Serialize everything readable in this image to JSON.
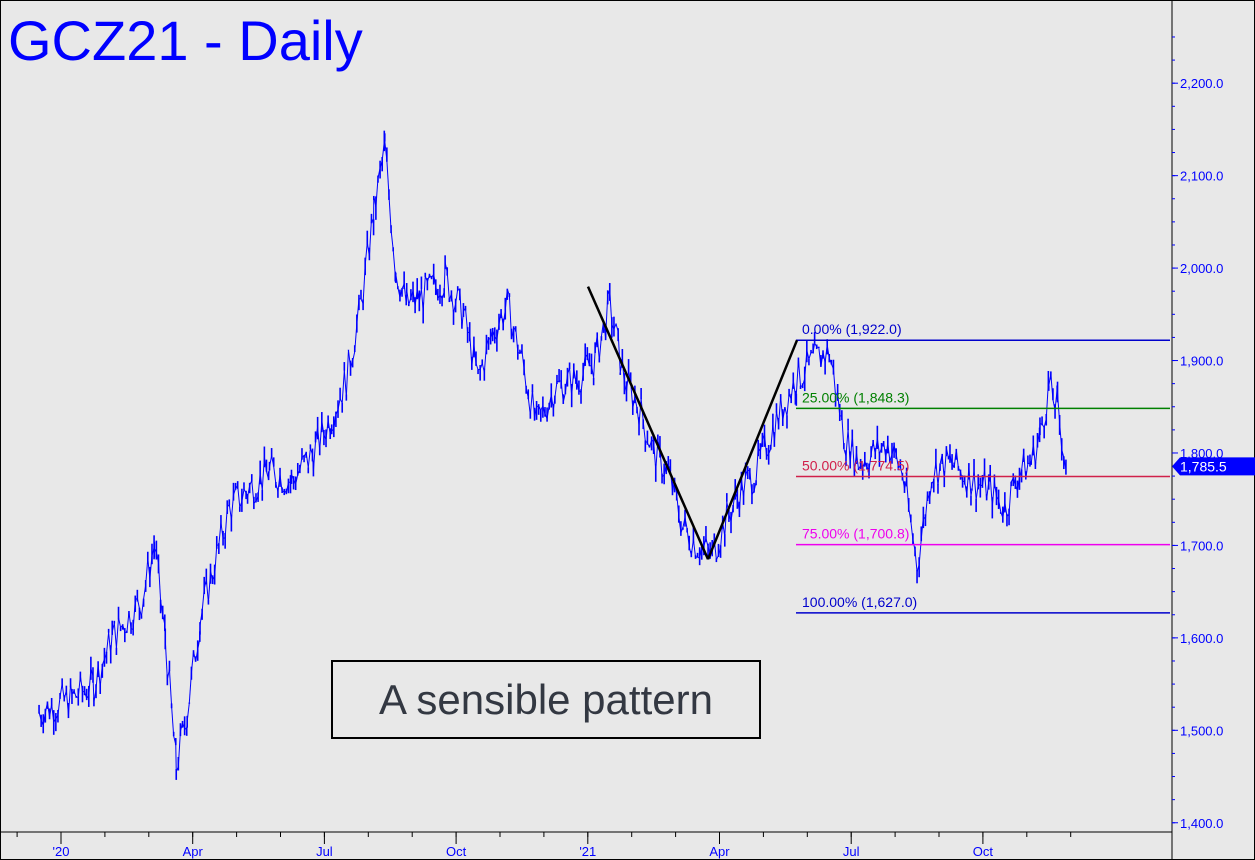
{
  "chart_title": "GCZ21 - Daily",
  "annotation_box": "A sensible pattern",
  "colors": {
    "background": "#e8e8e8",
    "price": "#0000ff",
    "frame": "#000000",
    "fib_0": "#0000cc",
    "fib_25": "#008000",
    "fib_50": "#d0204a",
    "fib_75": "#ee00ee",
    "fib_100": "#0000cc"
  },
  "chart_data": {
    "type": "line",
    "title": "GCZ21 - Daily",
    "ylim": [
      1390,
      2290
    ],
    "y_ticks": [
      "2,200.0",
      "2,100.0",
      "2,000.0",
      "1,900.0",
      "1,800.0",
      "1,700.0",
      "1,600.0",
      "1,500.0",
      "1,400.0"
    ],
    "y_tick_values": [
      2200,
      2100,
      2000,
      1900,
      1800,
      1700,
      1600,
      1500,
      1400
    ],
    "x_ticks": [
      "'20",
      "Apr",
      "Jul",
      "Oct",
      "'21",
      "Apr",
      "Jul",
      "Oct"
    ],
    "x_tick_dates": [
      "2020-01",
      "2020-04",
      "2020-07",
      "2020-10",
      "2021-01",
      "2021-04",
      "2021-07",
      "2021-10"
    ],
    "last_price_label": "1,785.5",
    "last_price": 1785.5,
    "grid": false,
    "series": [
      {
        "x": [
          "2019-12",
          "2020-01",
          "2020-01",
          "2020-02",
          "2020-02",
          "2020-02",
          "2020-03",
          "2020-03",
          "2020-03",
          "2020-03",
          "2020-04",
          "2020-04",
          "2020-04",
          "2020-05",
          "2020-05",
          "2020-06",
          "2020-06",
          "2020-07",
          "2020-07",
          "2020-07",
          "2020-08",
          "2020-08",
          "2020-08",
          "2020-08",
          "2020-09",
          "2020-09",
          "2020-10",
          "2020-10",
          "2020-10",
          "2020-11",
          "2020-11",
          "2020-11",
          "2020-12",
          "2020-12",
          "2021-01",
          "2021-01",
          "2021-01",
          "2021-02",
          "2021-02",
          "2021-02",
          "2021-03",
          "2021-03",
          "2021-03",
          "2021-04",
          "2021-04",
          "2021-04",
          "2021-05",
          "2021-05",
          "2021-06",
          "2021-06",
          "2021-06",
          "2021-07",
          "2021-07",
          "2021-07",
          "2021-08",
          "2021-08",
          "2021-08",
          "2021-09",
          "2021-09",
          "2021-10",
          "2021-10",
          "2021-10",
          "2021-11",
          "2021-11",
          "2021-11",
          "2021-11",
          "2021-11"
        ],
        "values": [
          1520,
          1535,
          1550,
          1600,
          1620,
          1640,
          1700,
          1600,
          1460,
          1520,
          1620,
          1680,
          1740,
          1760,
          1780,
          1770,
          1800,
          1840,
          1880,
          1960,
          2060,
          2130,
          2000,
          1960,
          1970,
          1990,
          1950,
          1880,
          1930,
          1960,
          1900,
          1830,
          1870,
          1880,
          1900,
          1960,
          1880,
          1850,
          1800,
          1780,
          1720,
          1700,
          1690,
          1730,
          1760,
          1780,
          1830,
          1880,
          1900,
          1910,
          1820,
          1790,
          1800,
          1810,
          1780,
          1680,
          1780,
          1790,
          1770,
          1760,
          1740,
          1780,
          1790,
          1820,
          1870,
          1850,
          1785
        ]
      }
    ],
    "pattern_lines": {
      "x": [
        "2021-01",
        "2021-03",
        "2021-05"
      ],
      "values": [
        1980,
        1685,
        1922
      ]
    },
    "fib_levels": [
      {
        "label": "0.00% (1,922.0)",
        "value": 1922.0,
        "color": "#0000cc"
      },
      {
        "label": "25.00% (1,848.3)",
        "value": 1848.3,
        "color": "#008000"
      },
      {
        "label": "50.00% (1,774.5)",
        "value": 1774.5,
        "color": "#d0204a"
      },
      {
        "label": "75.00% (1,700.8)",
        "value": 1700.8,
        "color": "#ee00ee"
      },
      {
        "label": "100.00% (1,627.0)",
        "value": 1627.0,
        "color": "#0000cc"
      }
    ]
  }
}
